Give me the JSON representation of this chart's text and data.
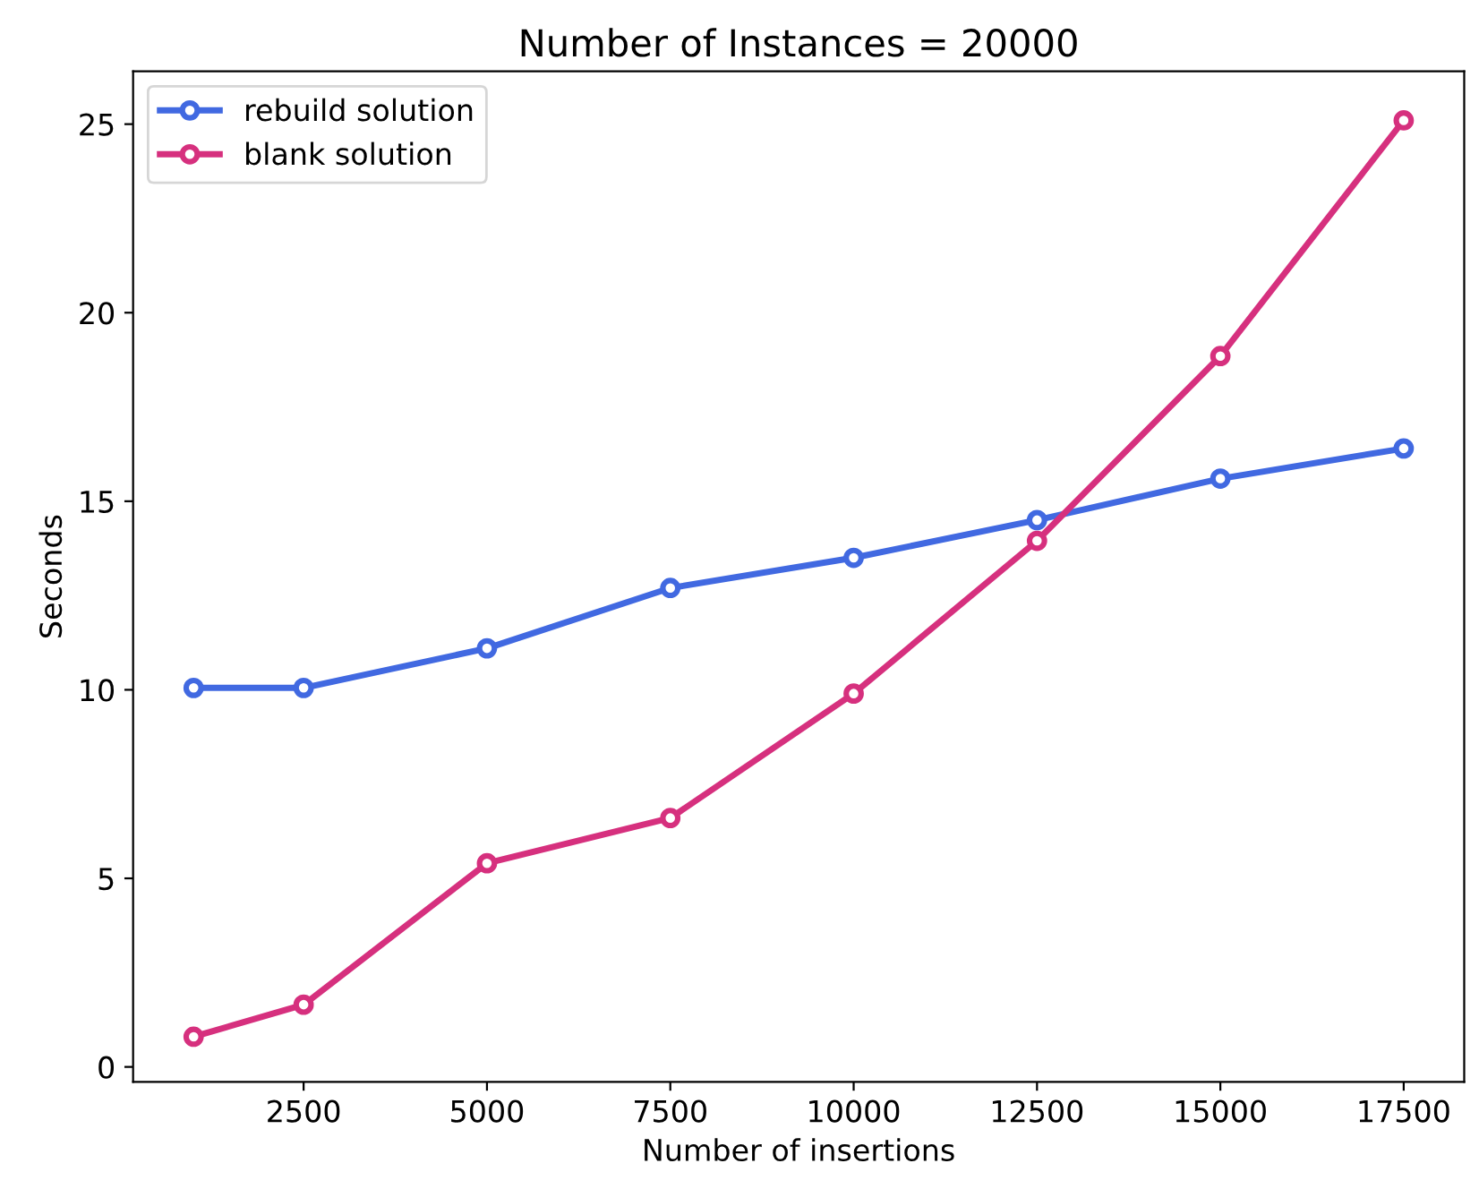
{
  "chart_data": {
    "type": "line",
    "title": "Number of Instances = 20000",
    "xlabel": "Number of insertions",
    "ylabel": "Seconds",
    "x": [
      1000,
      2500,
      5000,
      7500,
      10000,
      12500,
      15000,
      17500
    ],
    "series": [
      {
        "name": "rebuild solution",
        "color": "#4169e1",
        "values": [
          10.05,
          10.05,
          11.1,
          12.7,
          13.5,
          14.5,
          15.6,
          16.4
        ]
      },
      {
        "name": "blank solution",
        "color": "#d6307e",
        "values": [
          0.8,
          1.65,
          5.4,
          6.6,
          9.9,
          13.95,
          18.85,
          25.1
        ]
      }
    ],
    "xlim": [
      175,
      18325
    ],
    "ylim": [
      -0.4,
      26.4
    ],
    "xticks": [
      2500,
      5000,
      7500,
      10000,
      12500,
      15000,
      17500
    ],
    "yticks": [
      0,
      5,
      10,
      15,
      20,
      25
    ],
    "marker": "circle",
    "line_style": "solid",
    "legend": "top left",
    "grid": false
  }
}
